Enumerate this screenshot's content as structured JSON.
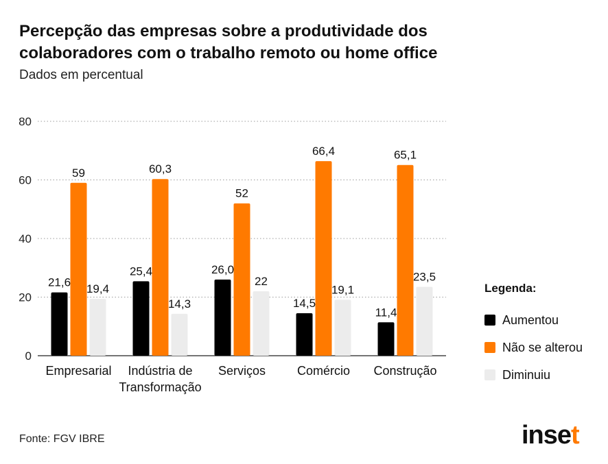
{
  "header": {
    "title": "Percepção das empresas sobre a produtividade dos colaboradores com o trabalho remoto ou home office",
    "subtitle": "Dados em percentual"
  },
  "chart_data": {
    "type": "bar",
    "categories": [
      [
        "Empresarial"
      ],
      [
        "Indústria de",
        "Transformação"
      ],
      [
        "Serviços"
      ],
      [
        "Comércio"
      ],
      [
        "Construção"
      ]
    ],
    "series": [
      {
        "name": "Aumentou",
        "values": [
          21.6,
          25.4,
          26.0,
          14.5,
          11.4
        ],
        "labels": [
          "21,6",
          "25,4",
          "26,0",
          "14,5",
          "11,4"
        ],
        "color": "#000000"
      },
      {
        "name": "Não se alterou",
        "values": [
          59,
          60.3,
          52,
          66.4,
          65.1
        ],
        "labels": [
          "59",
          "60,3",
          "52",
          "66,4",
          "65,1"
        ],
        "color": "#ff7a00"
      },
      {
        "name": "Diminuiu",
        "values": [
          19.4,
          14.3,
          22,
          19.1,
          23.5
        ],
        "labels": [
          "19,4",
          "14,3",
          "22",
          "19,1",
          "23,5"
        ],
        "color": "#ececec"
      }
    ],
    "yticks": [
      "0",
      "20",
      "40",
      "60",
      "80"
    ],
    "ylim": [
      0,
      80
    ],
    "grid": "dotted-horizontal",
    "legend_position": "right"
  },
  "legend": {
    "title": "Legenda:",
    "items": [
      {
        "label": "Aumentou",
        "color": "#000000"
      },
      {
        "label": "Não se alterou",
        "color": "#ff7a00"
      },
      {
        "label": "Diminuiu",
        "color": "#ececec"
      }
    ]
  },
  "footer": {
    "source": "Fonte: FGV IBRE",
    "brand_main": "inse",
    "brand_accent": "t"
  }
}
